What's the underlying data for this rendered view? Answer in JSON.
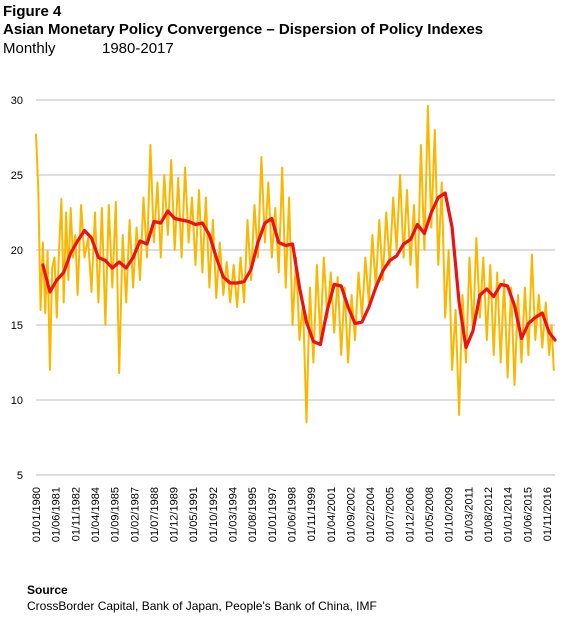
{
  "header": {
    "figure_label": "Figure 4",
    "title": "Asian Monetary Policy Convergence – Dispersion of Policy Indexes",
    "frequency": "Monthly",
    "period": "1980-2017"
  },
  "footer": {
    "source_label": "Source",
    "source_text": "CrossBorder Capital, Bank of Japan, People's Bank of China, IMF"
  },
  "colors": {
    "raw_series": "#FBB700",
    "smoothed_series": "#EE1111",
    "gridline": "#BDBDBD",
    "text": "#000000"
  },
  "chart_data": {
    "type": "line",
    "title": "",
    "xlabel": "",
    "ylabel": "",
    "ylim": [
      5,
      30
    ],
    "yticks": [
      5,
      10,
      15,
      20,
      25,
      30
    ],
    "grid": true,
    "legend": "none",
    "xlim": [
      "01/01/1980",
      "01/06/2017"
    ],
    "xtick_labels": [
      "01/01/1980",
      "01/06/1981",
      "01/11/1982",
      "01/04/1984",
      "01/09/1985",
      "01/02/1987",
      "01/07/1988",
      "01/12/1989",
      "01/05/1991",
      "01/10/1992",
      "01/03/1994",
      "01/08/1995",
      "01/01/1997",
      "01/06/1998",
      "01/11/1999",
      "01/04/2001",
      "01/09/2002",
      "01/02/2004",
      "01/07/2005",
      "01/12/2006",
      "01/05/2008",
      "01/10/2009",
      "01/03/2011",
      "01/08/2012",
      "01/01/2014",
      "01/06/2015",
      "01/11/2016"
    ],
    "series": [
      {
        "name": "",
        "style": "raw",
        "x": [
          "01/01/1980",
          "01/03/1980",
          "01/05/1980",
          "01/07/1980",
          "01/09/1980",
          "01/11/1980",
          "01/01/1981",
          "01/03/1981",
          "01/05/1981",
          "01/07/1981",
          "01/09/1981",
          "01/11/1981",
          "01/01/1982",
          "01/03/1982",
          "01/05/1982",
          "01/07/1982",
          "01/09/1982",
          "01/11/1982",
          "01/01/1983",
          "01/04/1983",
          "01/07/1983",
          "01/10/1983",
          "01/01/1984",
          "01/04/1984",
          "01/07/1984",
          "01/10/1984",
          "01/01/1985",
          "01/04/1985",
          "01/07/1985",
          "01/10/1985",
          "01/01/1986",
          "01/04/1986",
          "01/07/1986",
          "01/10/1986",
          "01/01/1987",
          "01/04/1987",
          "01/07/1987",
          "01/10/1987",
          "01/01/1988",
          "01/04/1988",
          "01/07/1988",
          "01/10/1988",
          "01/01/1989",
          "01/04/1989",
          "01/07/1989",
          "01/10/1989",
          "01/01/1990",
          "01/04/1990",
          "01/07/1990",
          "01/10/1990",
          "01/01/1991",
          "01/04/1991",
          "01/07/1991",
          "01/10/1991",
          "01/01/1992",
          "01/04/1992",
          "01/07/1992",
          "01/10/1992",
          "01/01/1993",
          "01/04/1993",
          "01/07/1993",
          "01/10/1993",
          "01/01/1994",
          "01/04/1994",
          "01/07/1994",
          "01/10/1994",
          "01/01/1995",
          "01/04/1995",
          "01/07/1995",
          "01/10/1995",
          "01/01/1996",
          "01/04/1996",
          "01/07/1996",
          "01/10/1996",
          "01/01/1997",
          "01/04/1997",
          "01/07/1997",
          "01/10/1997",
          "01/01/1998",
          "01/04/1998",
          "01/07/1998",
          "01/10/1998",
          "01/01/1999",
          "01/04/1999",
          "01/07/1999",
          "01/10/1999",
          "01/01/2000",
          "01/04/2000",
          "01/07/2000",
          "01/10/2000",
          "01/01/2001",
          "01/04/2001",
          "01/07/2001",
          "01/10/2001",
          "01/01/2002",
          "01/04/2002",
          "01/07/2002",
          "01/10/2002",
          "01/01/2003",
          "01/04/2003",
          "01/07/2003",
          "01/10/2003",
          "01/01/2004",
          "01/04/2004",
          "01/07/2004",
          "01/10/2004",
          "01/01/2005",
          "01/04/2005",
          "01/07/2005",
          "01/10/2005",
          "01/01/2006",
          "01/04/2006",
          "01/07/2006",
          "01/10/2006",
          "01/01/2007",
          "01/04/2007",
          "01/07/2007",
          "01/10/2007",
          "01/01/2008",
          "01/04/2008",
          "01/07/2008",
          "01/10/2008",
          "01/01/2009",
          "01/04/2009",
          "01/07/2009",
          "01/10/2009",
          "01/01/2010",
          "01/04/2010",
          "01/07/2010",
          "01/10/2010",
          "01/01/2011",
          "01/04/2011",
          "01/07/2011",
          "01/10/2011",
          "01/01/2012",
          "01/04/2012",
          "01/07/2012",
          "01/10/2012",
          "01/01/2013",
          "01/04/2013",
          "01/07/2013",
          "01/10/2013",
          "01/01/2014",
          "01/04/2014",
          "01/07/2014",
          "01/10/2014",
          "01/01/2015",
          "01/04/2015",
          "01/07/2015",
          "01/10/2015",
          "01/01/2016",
          "01/04/2016",
          "01/07/2016",
          "01/10/2016",
          "01/01/2017",
          "01/03/2017",
          "01/05/2017"
        ],
        "y": [
          27.7,
          24,
          16,
          20.5,
          15.8,
          19.9,
          12,
          18.8,
          19.5,
          15.5,
          20.1,
          23.4,
          16.5,
          22.5,
          18,
          22.8,
          19.5,
          21,
          17,
          23,
          19.5,
          20.8,
          17.2,
          22.5,
          16.5,
          22.8,
          15,
          23,
          17.5,
          23.2,
          11.8,
          21,
          16.5,
          22,
          17.5,
          21.5,
          18,
          23.5,
          19.5,
          27,
          20.5,
          24.5,
          19.5,
          25,
          21,
          26,
          20,
          24.8,
          19.5,
          25.5,
          20.5,
          23.5,
          19,
          24,
          18.5,
          23.5,
          17.5,
          22,
          16.8,
          20.5,
          17,
          19.2,
          16.5,
          19,
          16.2,
          19.5,
          16.5,
          22,
          18,
          23,
          19.5,
          26.2,
          20.5,
          24.5,
          19.5,
          22.8,
          18.5,
          25.5,
          17.5,
          23.5,
          15,
          19.5,
          14,
          16.5,
          8.5,
          17.5,
          12.5,
          19,
          14,
          19.5,
          15.5,
          18.5,
          14.5,
          18.2,
          13,
          17.5,
          12.5,
          17,
          14,
          18.5,
          15.5,
          19.5,
          16.5,
          21,
          17.5,
          22,
          18,
          22.5,
          19,
          23.5,
          20,
          25,
          19.5,
          24,
          19,
          23,
          17.5,
          27,
          20,
          29.6,
          21.5,
          28,
          19,
          24.5,
          15.5,
          20,
          12,
          16,
          9,
          17,
          12.5,
          19.5,
          14.5,
          20.8,
          15.5,
          19.5,
          14,
          19,
          13,
          18.5,
          12.5,
          18,
          11.5,
          17.5,
          11,
          17,
          12.5,
          17.5,
          13,
          19.7,
          14,
          17,
          13.5,
          16.5,
          13,
          15,
          12
        ]
      },
      {
        "name": "",
        "style": "smoothed",
        "x": [
          "01/07/1980",
          "01/01/1981",
          "01/07/1981",
          "01/01/1982",
          "01/07/1982",
          "01/01/1983",
          "01/07/1983",
          "01/01/1984",
          "01/07/1984",
          "01/01/1985",
          "01/07/1985",
          "01/01/1986",
          "01/07/1986",
          "01/01/1987",
          "01/07/1987",
          "01/01/1988",
          "01/07/1988",
          "01/01/1989",
          "01/07/1989",
          "01/01/1990",
          "01/07/1990",
          "01/01/1991",
          "01/07/1991",
          "01/01/1992",
          "01/07/1992",
          "01/01/1993",
          "01/07/1993",
          "01/01/1994",
          "01/07/1994",
          "01/01/1995",
          "01/07/1995",
          "01/01/1996",
          "01/07/1996",
          "01/01/1997",
          "01/07/1997",
          "01/01/1998",
          "01/07/1998",
          "01/01/1999",
          "01/07/1999",
          "01/01/2000",
          "01/07/2000",
          "01/01/2001",
          "01/07/2001",
          "01/01/2002",
          "01/07/2002",
          "01/01/2003",
          "01/07/2003",
          "01/01/2004",
          "01/07/2004",
          "01/01/2005",
          "01/07/2005",
          "01/01/2006",
          "01/07/2006",
          "01/01/2007",
          "01/07/2007",
          "01/01/2008",
          "01/07/2008",
          "01/01/2009",
          "01/07/2009",
          "01/01/2010",
          "01/07/2010",
          "01/01/2011",
          "01/07/2011",
          "01/01/2012",
          "01/07/2012",
          "01/01/2013",
          "01/07/2013",
          "01/01/2014",
          "01/07/2014",
          "01/01/2015",
          "01/07/2015",
          "01/01/2016",
          "01/07/2016",
          "01/01/2017",
          "01/06/2017"
        ],
        "y": [
          19,
          17.2,
          18,
          18.5,
          19.8,
          20.6,
          21.3,
          20.8,
          19.5,
          19.3,
          18.8,
          19.2,
          18.8,
          19.5,
          20.6,
          20.4,
          21.9,
          21.8,
          22.6,
          22.1,
          22,
          21.9,
          21.7,
          21.8,
          21,
          19.5,
          18.2,
          17.8,
          17.8,
          17.9,
          18.7,
          20.5,
          21.8,
          22.1,
          20.5,
          20.3,
          20.4,
          17.5,
          15.2,
          13.9,
          13.7,
          16,
          17.7,
          17.6,
          16.2,
          15.1,
          15.2,
          16.2,
          17.5,
          18.6,
          19.3,
          19.6,
          20.4,
          20.7,
          21.7,
          21.1,
          22.5,
          23.5,
          23.8,
          21.5,
          16.5,
          13.5,
          14.6,
          17,
          17.4,
          16.9,
          17.7,
          17.6,
          16.3,
          14.1,
          15.1,
          15.5,
          15.8,
          14.5,
          14
        ]
      }
    ]
  }
}
